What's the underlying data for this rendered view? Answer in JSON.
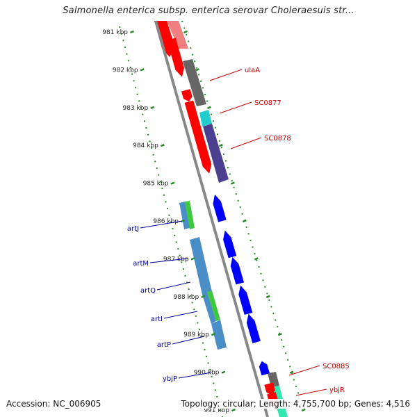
{
  "title": "Salmonella enterica subsp. enterica serovar Choleraesuis str...",
  "footer": {
    "accession": "Accession: NC_006905",
    "stats": "Topology: circular; Length: 4,755,700 bp; Genes: 4,516"
  },
  "ruler": {
    "unit": "kbp",
    "ticks": [
      "981 kbp",
      "982 kbp",
      "983 kbp",
      "984 kbp",
      "985 kbp",
      "986 kbp",
      "987 kbp",
      "988 kbp",
      "989 kbp",
      "990 kbp",
      "991 kbp"
    ]
  },
  "genes_forward": [
    {
      "label": "ulaA",
      "start_kbp": 981.55,
      "end_kbp": 982.55,
      "color": "#ff0000"
    },
    {
      "label": "SC0877",
      "start_kbp": 982.9,
      "end_kbp": 983.2,
      "color": "#ff0000"
    },
    {
      "label": "SC0878",
      "start_kbp": 983.2,
      "end_kbp": 985.1,
      "color": "#ff0000"
    },
    {
      "label": "SC0885",
      "start_kbp": 990.65,
      "end_kbp": 990.95,
      "color": "#ff0000"
    },
    {
      "label": "ybjR",
      "start_kbp": 990.9,
      "end_kbp": 991.3,
      "color": "#ff0000"
    }
  ],
  "genes_reverse": [
    {
      "label": "artJ",
      "start_kbp": 985.65,
      "end_kbp": 986.35,
      "color": "#0000ff"
    },
    {
      "label": "artM",
      "start_kbp": 986.6,
      "end_kbp": 987.3,
      "color": "#0000ff"
    },
    {
      "label": "artQ",
      "start_kbp": 987.3,
      "end_kbp": 988.0,
      "color": "#0000ff"
    },
    {
      "label": "artI",
      "start_kbp": 988.05,
      "end_kbp": 988.8,
      "color": "#0000ff"
    },
    {
      "label": "artP",
      "start_kbp": 988.8,
      "end_kbp": 989.55,
      "color": "#0000ff"
    },
    {
      "label": "ybjP",
      "start_kbp": 990.05,
      "end_kbp": 990.4,
      "color": "#0000ff"
    }
  ],
  "colors": {
    "forward_gene": "#ff0000",
    "reverse_gene": "#0000ff",
    "forward_label": "#cc0000",
    "reverse_label": "#000099",
    "ruler_tick": "#228b22",
    "backbone": "#888888",
    "cog_gray": "#666666",
    "cog_cyan": "#22cccc",
    "cog_indigo": "#4b3f8f",
    "cog_steelblue": "#4a8ec8",
    "cog_green": "#3ec83e",
    "cog_aqua": "#33e8b0",
    "cog_pink": "#f08080"
  }
}
